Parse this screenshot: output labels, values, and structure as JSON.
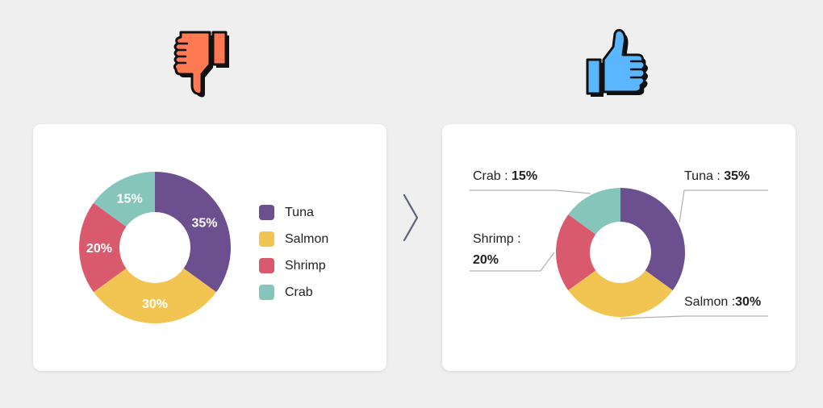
{
  "colors": {
    "background": "#efefef",
    "card": "#ffffff",
    "thumb_down": "#ff7a52",
    "thumb_up": "#5ab6ff",
    "leader": "#b0b0b0",
    "arrow": "#5b6178"
  },
  "icons": {
    "bad_example": "thumbs-down-icon",
    "good_example": "thumbs-up-icon",
    "separator": "chevron-right-icon"
  },
  "chart_data": [
    {
      "type": "pie",
      "style": "donut",
      "labels": [
        "Tuna",
        "Salmon",
        "Shrimp",
        "Crab"
      ],
      "values": [
        35,
        30,
        20,
        15
      ],
      "value_labels": [
        "35%",
        "30%",
        "20%",
        "15%"
      ],
      "colors": [
        "#6c4f8e",
        "#f2c553",
        "#d85a6c",
        "#86c5bb"
      ],
      "legend": "right",
      "labels_placement": "inside"
    },
    {
      "type": "pie",
      "style": "donut",
      "labels": [
        "Tuna",
        "Salmon",
        "Shrimp",
        "Crab"
      ],
      "values": [
        35,
        30,
        20,
        15
      ],
      "value_labels": [
        "35%",
        "30%",
        "20%",
        "15%"
      ],
      "colors": [
        "#6c4f8e",
        "#f2c553",
        "#d85a6c",
        "#86c5bb"
      ],
      "legend": "none",
      "labels_placement": "outside with leader lines",
      "annotations": [
        {
          "name": "Tuna :",
          "value": "35%"
        },
        {
          "name": "Salmon :",
          "value": "30%"
        },
        {
          "name": "Shrimp :",
          "value": "20%"
        },
        {
          "name": "Crab :",
          "value": "15%"
        }
      ]
    }
  ]
}
